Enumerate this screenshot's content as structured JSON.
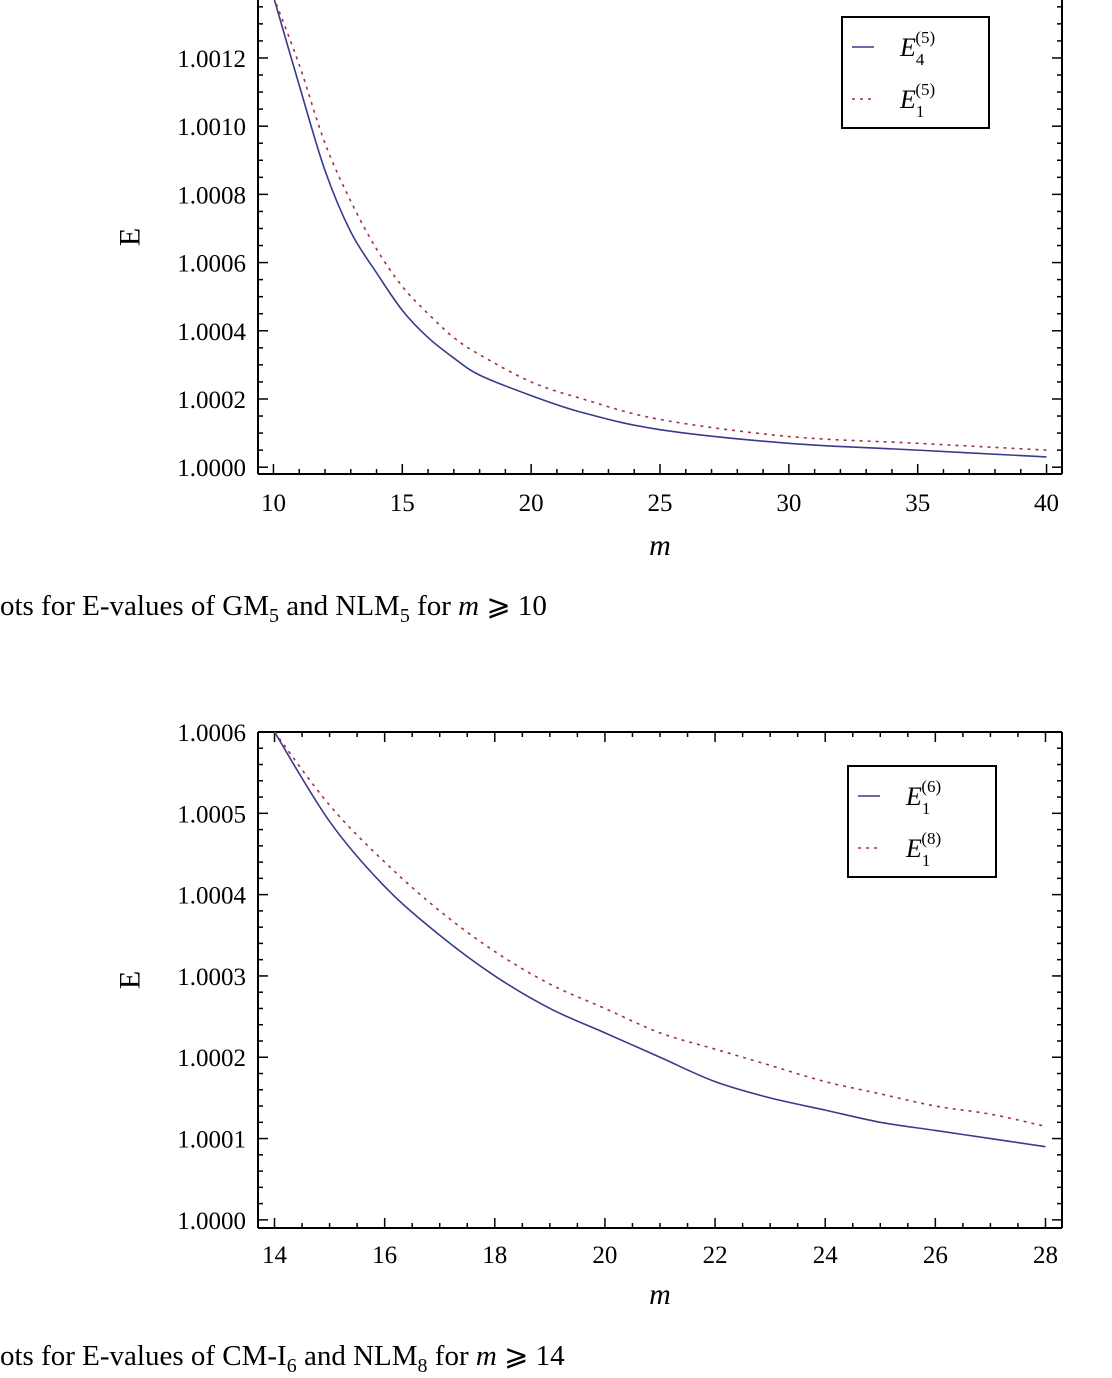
{
  "chart_data": [
    {
      "type": "line",
      "title": "",
      "xlabel": "m",
      "ylabel": "E",
      "xlim": [
        9.4,
        40.6
      ],
      "ylim": [
        0.99998,
        1.00137
      ],
      "xticks": [
        10,
        15,
        20,
        25,
        30,
        35,
        40
      ],
      "yticks": [
        1.0,
        1.0002,
        1.0004,
        1.0006,
        1.0008,
        1.001,
        1.0012
      ],
      "ytick_labels": [
        "1.0000",
        "1.0002",
        "1.0004",
        "1.0006",
        "1.0008",
        "1.0010",
        "1.0012"
      ],
      "legend_position": "top-right",
      "grid": false,
      "series": [
        {
          "name": "E4(5)",
          "legend_main": "E",
          "legend_sub": "4",
          "legend_sup": "(5)",
          "style": "solid",
          "color": "#3a3a8c",
          "x": [
            10,
            11,
            12,
            13,
            14,
            15,
            16,
            17,
            18,
            20,
            22,
            25,
            30,
            35,
            40
          ],
          "y": [
            1.00138,
            1.00112,
            1.00087,
            1.00069,
            1.00057,
            1.00046,
            1.00038,
            1.00032,
            1.00027,
            1.00021,
            1.00016,
            1.00011,
            1.00007,
            1.00005,
            1.00003
          ]
        },
        {
          "name": "E1(5)",
          "legend_main": "E",
          "legend_sub": "1",
          "legend_sup": "(5)",
          "style": "dotted",
          "color": "#a0304a",
          "x": [
            10,
            11,
            12,
            13,
            14,
            15,
            16,
            17,
            18,
            20,
            22,
            25,
            30,
            35,
            40
          ],
          "y": [
            1.00138,
            1.00118,
            1.00095,
            1.00078,
            1.00064,
            1.00053,
            1.00045,
            1.00038,
            1.00033,
            1.00025,
            1.0002,
            1.00014,
            1.00009,
            1.00007,
            1.00005
          ]
        }
      ]
    },
    {
      "type": "line",
      "title": "",
      "xlabel": "m",
      "ylabel": "E",
      "xlim": [
        13.7,
        28.3
      ],
      "ylim": [
        0.99999,
        1.0006
      ],
      "xticks": [
        14,
        16,
        18,
        20,
        22,
        24,
        26,
        28
      ],
      "yticks": [
        1.0,
        1.0001,
        1.0002,
        1.0003,
        1.0004,
        1.0005,
        1.0006
      ],
      "ytick_labels": [
        "1.0000",
        "1.0001",
        "1.0002",
        "1.0003",
        "1.0004",
        "1.0005",
        "1.0006"
      ],
      "legend_position": "top-right",
      "grid": false,
      "series": [
        {
          "name": "E1(6)",
          "legend_main": "E",
          "legend_sub": "1",
          "legend_sup": "(6)",
          "style": "solid",
          "color": "#3a3a8c",
          "x": [
            14,
            15,
            16,
            17,
            18,
            19,
            20,
            21,
            22,
            23,
            24,
            25,
            26,
            27,
            28
          ],
          "y": [
            1.0006,
            1.00049,
            1.00041,
            1.00035,
            1.0003,
            1.00026,
            1.00023,
            1.0002,
            1.00017,
            1.00015,
            1.000135,
            1.00012,
            1.00011,
            1.0001,
            1.00009
          ]
        },
        {
          "name": "E1(8)",
          "legend_main": "E",
          "legend_sub": "1",
          "legend_sup": "(8)",
          "style": "dotted",
          "color": "#a0304a",
          "x": [
            14,
            15,
            16,
            17,
            18,
            19,
            20,
            21,
            22,
            23,
            24,
            25,
            26,
            27,
            28
          ],
          "y": [
            1.0006,
            1.00051,
            1.00044,
            1.00038,
            1.00033,
            1.00029,
            1.00026,
            1.00023,
            1.00021,
            1.00019,
            1.00017,
            1.000155,
            1.00014,
            1.00013,
            1.000115
          ]
        }
      ]
    }
  ],
  "captions": [
    {
      "prefix": "ots for E-values of GM",
      "sub1": "5",
      "mid": " and NLM",
      "sub2": "5",
      "pre_var": " for ",
      "var": "m",
      "suffix": " ⩾ 10"
    },
    {
      "prefix": "ots for E-values of CM-I",
      "sub1": "6",
      "mid": " and NLM",
      "sub2": "8",
      "pre_var": " for ",
      "var": "m",
      "suffix": " ⩾ 14"
    }
  ]
}
